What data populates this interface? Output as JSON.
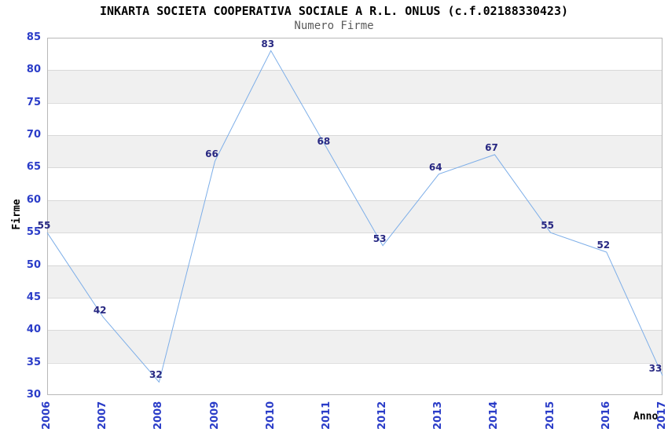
{
  "chart_data": {
    "type": "line",
    "title": "INKARTA SOCIETA COOPERATIVA SOCIALE A R.L. ONLUS (c.f.02188330423)",
    "subtitle": "Numero Firme",
    "xlabel": "Anno",
    "ylabel": "Firme",
    "categories": [
      "2006",
      "2007",
      "2008",
      "2009",
      "2010",
      "2011",
      "2012",
      "2013",
      "2014",
      "2015",
      "2016",
      "2017"
    ],
    "values": [
      55,
      42,
      32,
      66,
      83,
      68,
      53,
      64,
      67,
      55,
      52,
      33
    ],
    "ylim": [
      30,
      85
    ],
    "ytick_step": 5,
    "ytick_labels": [
      "30",
      "35",
      "40",
      "45",
      "50",
      "55",
      "60",
      "65",
      "70",
      "75",
      "80",
      "85"
    ],
    "grid": "horizontal",
    "legend": "none",
    "background_bands": "alternating gray/white between y gridlines",
    "colors": {
      "line": "#7daee8",
      "value_label": "#282882",
      "tick_label": "#2a3cc8",
      "title": "#000000",
      "subtitle": "#5a5a5a",
      "band_gray": "#f0f0f0",
      "gridline": "#d9d9d9",
      "plot_border": "#b8b8b8",
      "background": "#ffffff"
    }
  }
}
